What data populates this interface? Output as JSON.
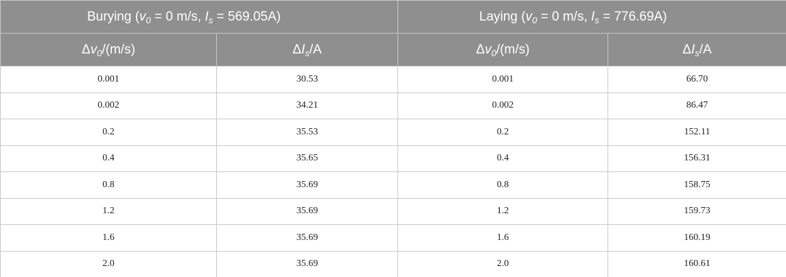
{
  "header": {
    "groups": [
      {
        "segments": [
          "Burying (",
          "v",
          "0",
          " = 0 m/s, ",
          "I",
          "s",
          " = 569.05A)"
        ]
      },
      {
        "segments": [
          "Laying (",
          "v",
          "0",
          " = 0 m/s, ",
          "I",
          "s",
          " = 776.69A)"
        ]
      }
    ],
    "columns": [
      {
        "segments": [
          "Δ",
          "v",
          "0",
          "/(m/s)"
        ]
      },
      {
        "segments": [
          "Δ",
          "I",
          "s",
          "/A"
        ]
      },
      {
        "segments": [
          "Δ",
          "v",
          "0",
          "/(m/s)"
        ]
      },
      {
        "segments": [
          "Δ",
          "I",
          "s",
          "/A"
        ]
      }
    ]
  },
  "table": {
    "rows": [
      [
        "0.001",
        "30.53",
        "0.001",
        "66.70"
      ],
      [
        "0.002",
        "34.21",
        "0.002",
        "86.47"
      ],
      [
        "0.2",
        "35.53",
        "0.2",
        "152.11"
      ],
      [
        "0.4",
        "35.65",
        "0.4",
        "156.31"
      ],
      [
        "0.8",
        "35.69",
        "0.8",
        "158.75"
      ],
      [
        "1.2",
        "35.69",
        "1.2",
        "159.73"
      ],
      [
        "1.6",
        "35.69",
        "1.6",
        "160.19"
      ],
      [
        "2.0",
        "35.69",
        "2.0",
        "160.61"
      ]
    ]
  }
}
